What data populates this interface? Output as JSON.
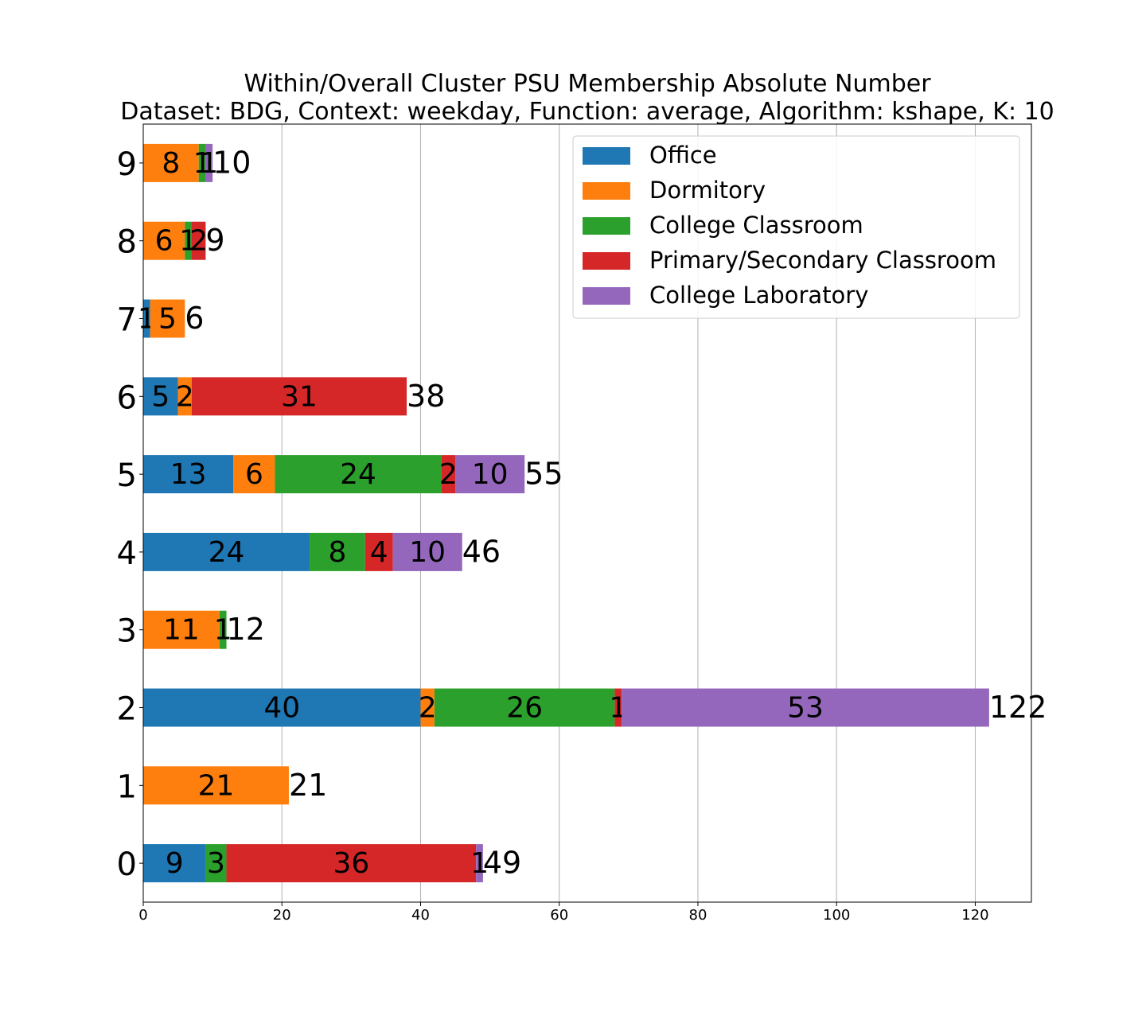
{
  "chart_data": {
    "type": "bar",
    "orientation": "horizontal",
    "stacked": true,
    "title": "Within/Overall Cluster PSU Membership Absolute Number",
    "subtitle": "Dataset: BDG, Context: weekday, Function: average, Algorithm: kshape, K: 10",
    "xlabel": "",
    "ylabel": "",
    "xlim": [
      0,
      128.1
    ],
    "xticks": [
      0,
      20,
      40,
      60,
      80,
      100,
      120
    ],
    "grid": "x",
    "legend_position": "top-right",
    "categories": [
      "0",
      "1",
      "2",
      "3",
      "4",
      "5",
      "6",
      "7",
      "8",
      "9"
    ],
    "series": [
      {
        "name": "Office",
        "color": "#1f77b4",
        "values": [
          9,
          0,
          40,
          0,
          24,
          13,
          5,
          1,
          0,
          0
        ]
      },
      {
        "name": "Dormitory",
        "color": "#ff7f0e",
        "values": [
          0,
          21,
          2,
          11,
          0,
          6,
          2,
          5,
          6,
          8
        ]
      },
      {
        "name": "College Classroom",
        "color": "#2ca02c",
        "values": [
          3,
          0,
          26,
          1,
          8,
          24,
          0,
          0,
          1,
          1
        ]
      },
      {
        "name": "Primary/Secondary Classroom",
        "color": "#d62728",
        "values": [
          36,
          0,
          1,
          0,
          4,
          2,
          31,
          0,
          2,
          0
        ]
      },
      {
        "name": "College Laboratory",
        "color": "#9467bd",
        "values": [
          1,
          0,
          53,
          0,
          10,
          10,
          0,
          0,
          0,
          1
        ]
      }
    ],
    "totals": [
      49,
      21,
      122,
      12,
      46,
      55,
      38,
      6,
      9,
      10
    ]
  }
}
